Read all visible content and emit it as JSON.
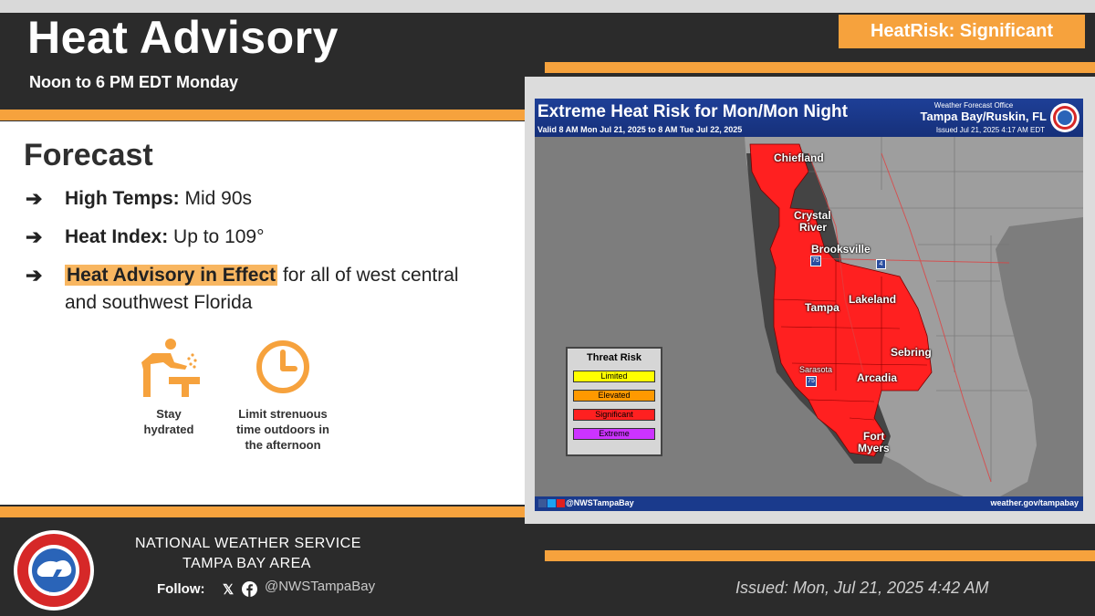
{
  "header": {
    "title": "Heat Advisory",
    "subtitle": "Noon to 6 PM EDT Monday",
    "badge": "HeatRisk: Significant"
  },
  "forecast": {
    "heading": "Forecast",
    "bullets": [
      {
        "label": "High Temps:",
        "value": "Mid 90s"
      },
      {
        "label": "Heat Index:",
        "value": "Up to 109°"
      },
      {
        "label": "Heat Advisory in Effect",
        "value": "for all of west central",
        "value2": "and southwest Florida"
      }
    ],
    "tips": [
      {
        "icon": "drinking-fountain-icon",
        "caption1": "Stay",
        "caption2": "hydrated"
      },
      {
        "icon": "clock-icon",
        "caption1": "Limit strenuous",
        "caption2": "time outdoors in",
        "caption3": "the afternoon"
      }
    ]
  },
  "map": {
    "title": "Extreme Heat Risk for Mon/Mon Night",
    "valid": "Valid 8 AM Mon Jul 21, 2025 to 8 AM Tue Jul 22, 2025",
    "wfo": "Weather Forecast Office",
    "office": "Tampa Bay/Ruskin, FL",
    "issued": "Issued Jul 21, 2025 4:17 AM EDT",
    "cities": [
      "Chiefland",
      "Crystal",
      "River",
      "Brooksville",
      "Tampa",
      "Lakeland",
      "Sebring",
      "Sarasota",
      "Arcadia",
      "Fort",
      "Myers"
    ],
    "interstates": [
      "75",
      "4",
      "75"
    ],
    "legend": {
      "title": "Threat Risk",
      "items": [
        {
          "label": "Limited",
          "color": "#ffff00"
        },
        {
          "label": "Elevated",
          "color": "#ff9900"
        },
        {
          "label": "Significant",
          "color": "#ff2020"
        },
        {
          "label": "Extreme",
          "color": "#cc33ff"
        }
      ]
    },
    "footer_handle": "@NWSTampaBay",
    "footer_url": "weather.gov/tampabay"
  },
  "footer": {
    "agency_line1": "NATIONAL WEATHER SERVICE",
    "agency_line2": "TAMPA BAY AREA",
    "follow_label": "Follow:",
    "handle": "@NWSTampaBay",
    "issued": "Issued: Mon, Jul 21, 2025 4:42 AM"
  },
  "colors": {
    "accent": "#f6a23d",
    "dark": "#2b2b2b",
    "risk_red": "#ff2020"
  }
}
